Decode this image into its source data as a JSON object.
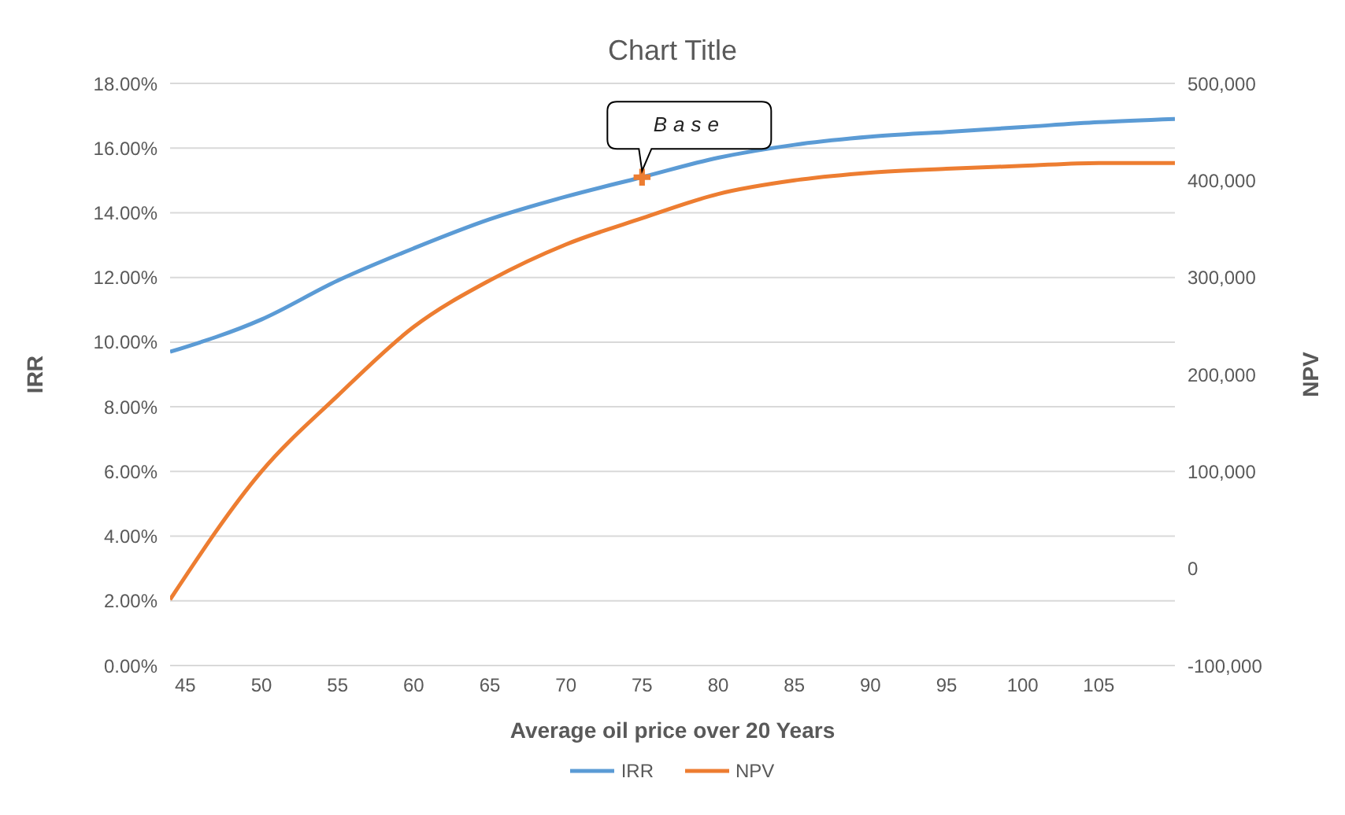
{
  "chart_data": {
    "type": "line",
    "title": "Chart Title",
    "xlabel": "Average oil price over 20 Years",
    "ylabel": "IRR",
    "y2label": "NPV",
    "xlim": [
      44,
      110
    ],
    "xticks": [
      45,
      50,
      55,
      60,
      65,
      70,
      75,
      80,
      85,
      90,
      95,
      100,
      105
    ],
    "ylim": [
      0,
      18
    ],
    "yticks": [
      {
        "value": 0,
        "label": "0.00%"
      },
      {
        "value": 2,
        "label": "2.00%"
      },
      {
        "value": 4,
        "label": "4.00%"
      },
      {
        "value": 6,
        "label": "6.00%"
      },
      {
        "value": 8,
        "label": "8.00%"
      },
      {
        "value": 10,
        "label": "10.00%"
      },
      {
        "value": 12,
        "label": "12.00%"
      },
      {
        "value": 14,
        "label": "14.00%"
      },
      {
        "value": 16,
        "label": "16.00%"
      },
      {
        "value": 18,
        "label": "18.00%"
      }
    ],
    "y2lim": [
      -100000,
      500000
    ],
    "y2ticks": [
      {
        "value": -100000,
        "label": "-100,000"
      },
      0,
      {
        "value": 100000,
        "label": "100,000"
      },
      {
        "value": 200000,
        "label": "200,000"
      },
      {
        "value": 300000,
        "label": "300,000"
      },
      {
        "value": 400000,
        "label": "400,000"
      },
      {
        "value": 500000,
        "label": "500,000"
      }
    ],
    "grid": "y",
    "legend": "bottom",
    "line_style": "solid",
    "series": [
      {
        "name": "IRR",
        "color": "#5b9bd5",
        "x": [
          44,
          50,
          55,
          60,
          65,
          70,
          75,
          80,
          85,
          90,
          95,
          100,
          105,
          110
        ],
        "values": [
          9.7,
          10.7,
          11.9,
          12.9,
          13.8,
          14.5,
          15.1,
          15.7,
          16.1,
          16.35,
          16.5,
          16.65,
          16.8,
          16.9
        ]
      },
      {
        "name": "NPV",
        "color": "#ed7d31",
        "axis": "y2",
        "x": [
          44,
          50,
          55,
          60,
          65,
          70,
          75,
          80,
          85,
          90,
          95,
          100,
          105,
          110
        ],
        "values": [
          -32000,
          100000,
          178000,
          249000,
          297000,
          334000,
          361000,
          386000,
          400000,
          408000,
          412000,
          415000,
          418000,
          418000
        ]
      },
      {
        "type": "scatter",
        "color": "#ed7d31",
        "marker": "cross",
        "x": [
          75
        ],
        "values": [
          15.1
        ]
      }
    ],
    "annotations": [
      {
        "text": "Base",
        "x": 75,
        "y": 15.1
      }
    ]
  }
}
